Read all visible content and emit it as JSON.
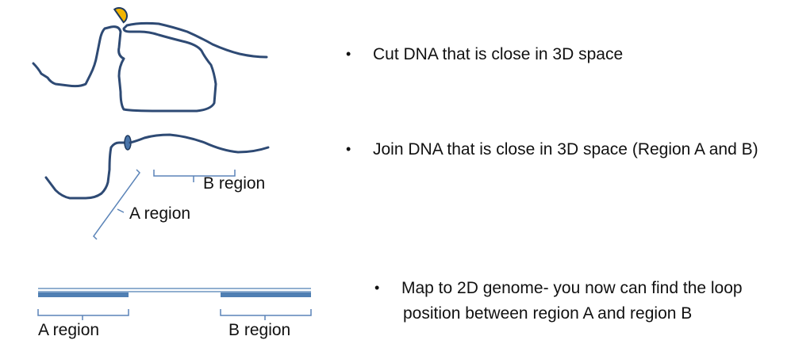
{
  "colors": {
    "dna_strand": "#2e4a74",
    "region_bar": "#4f7fb3",
    "enzyme_fill": "#f2b500",
    "enzyme_stroke": "#1f3a5f",
    "cut_mark": "#4a75aa",
    "bracket": "#5b84b8"
  },
  "icons": {
    "enzyme": "pacman-enzyme-icon",
    "ligation_mark": "ellipse-junction-icon"
  },
  "diagram": {
    "ligation_b_label": "B region",
    "ligation_a_label": "A region",
    "genome_a_label": "A region",
    "genome_b_label": "B region"
  },
  "bullets": [
    {
      "marker": "•",
      "text": "Cut DNA that is close in 3D space"
    },
    {
      "marker": "•",
      "text": "Join DNA that is close in 3D space (Region A and B)"
    },
    {
      "marker": "•",
      "text": "Map to 2D genome- you now can find the loop",
      "text_line2": "position between region A and region B"
    }
  ]
}
